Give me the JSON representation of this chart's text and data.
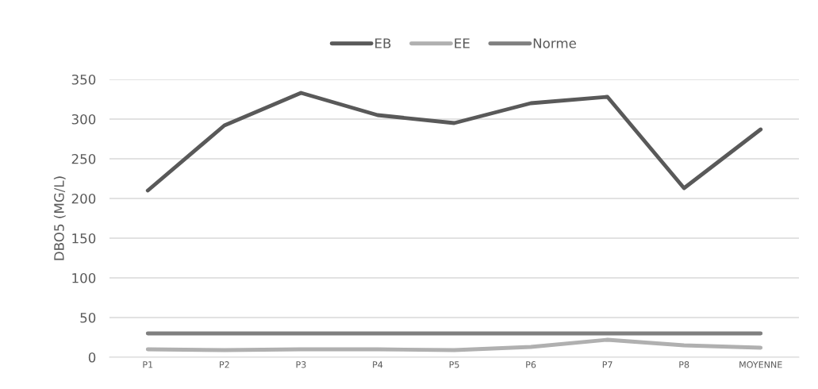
{
  "chart_data": {
    "type": "line",
    "ylabel": "DBO5 (MG/L)",
    "categories": [
      "P1",
      "P2",
      "P3",
      "P4",
      "P5",
      "P6",
      "P7",
      "P8",
      "MOYENNE"
    ],
    "series": [
      {
        "name": "EB",
        "color": "#595959",
        "values": [
          210,
          292,
          333,
          305,
          295,
          320,
          328,
          213,
          287
        ]
      },
      {
        "name": "EE",
        "color": "#b0b0b0",
        "values": [
          10,
          9,
          10,
          10,
          9,
          13,
          22,
          15,
          12
        ]
      },
      {
        "name": "Norme",
        "color": "#7f7f7f",
        "values": [
          30,
          30,
          30,
          30,
          30,
          30,
          30,
          30,
          30
        ]
      }
    ],
    "ylim": [
      0,
      350
    ],
    "yticks": [
      0,
      50,
      100,
      150,
      200,
      250,
      300,
      350
    ],
    "grid": "y",
    "legend": "top",
    "marker": "none",
    "line_style": "solid"
  }
}
